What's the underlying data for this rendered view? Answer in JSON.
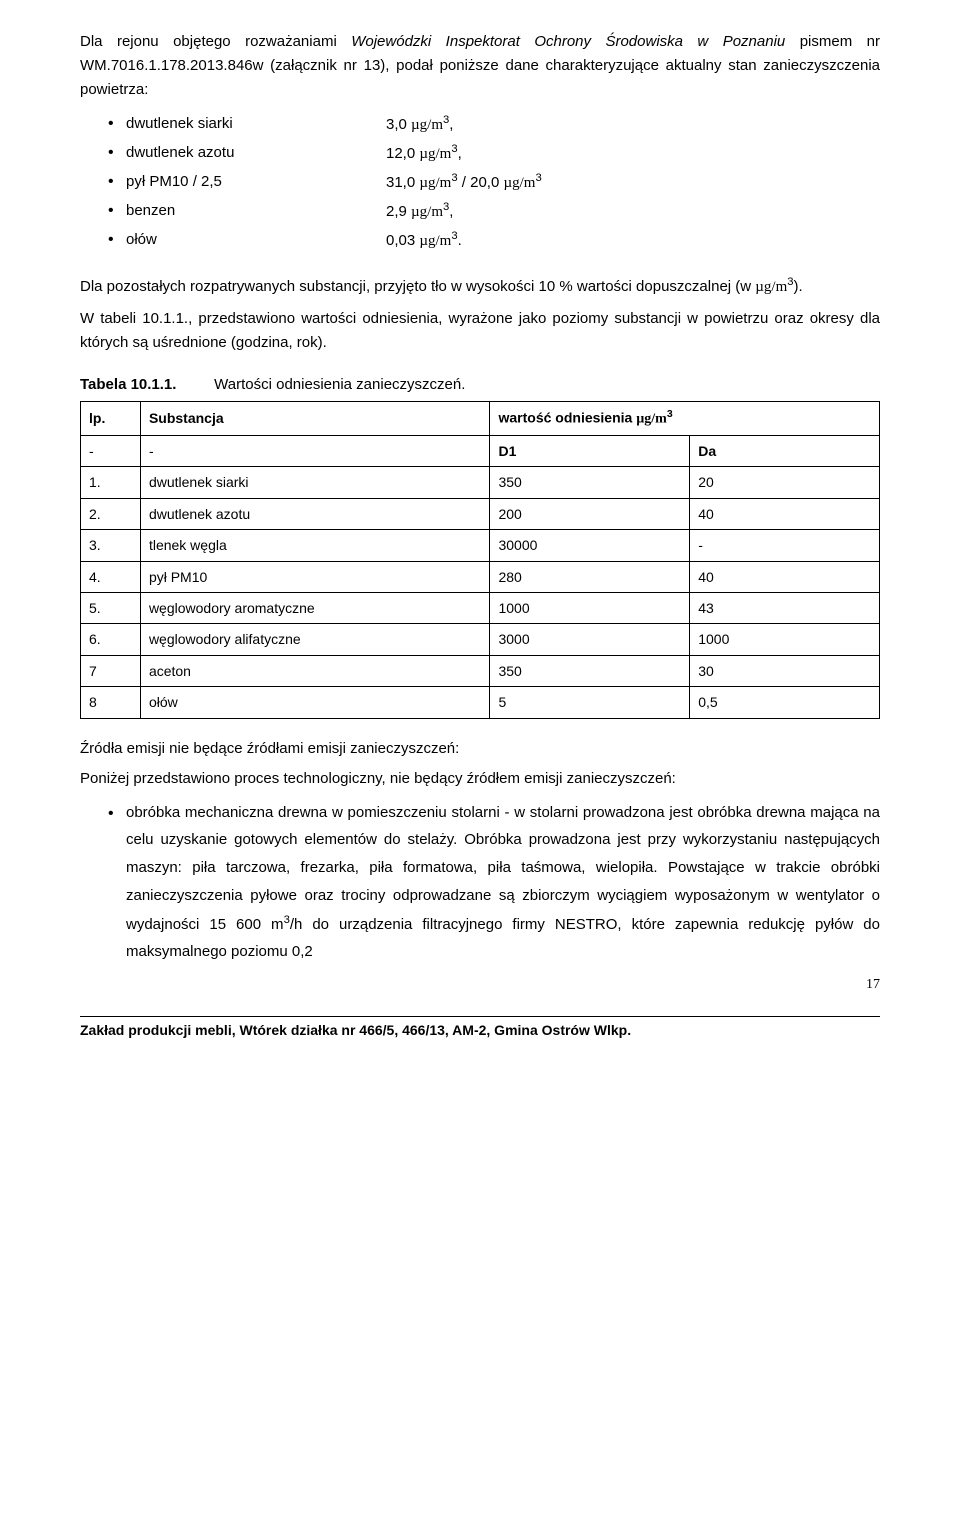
{
  "intro": {
    "p1_part1": "Dla rejonu objętego rozważaniami ",
    "p1_italic": "Wojewódzki Inspektorat Ochrony Środowiska w Poznaniu",
    "p1_part2": " pismem nr WM.7016.1.178.2013.846w (załącznik nr 13), podał poniższe dane charakteryzujące aktualny stan zanieczyszczenia powietrza:"
  },
  "pollutants": [
    {
      "label": "dwutlenek siarki",
      "value_pre": "3,0 ",
      "unit": "µg/m",
      "sup": "3",
      "suffix": ","
    },
    {
      "label": "dwutlenek azotu",
      "value_pre": "12,0 ",
      "unit": "µg/m",
      "sup": "3",
      "suffix": ","
    },
    {
      "label": "pył PM10 / 2,5",
      "value_pre": "31,0 ",
      "unit": "µg/m",
      "sup": "3",
      "suffix": " / 20,0 µg/m",
      "sup2": "3"
    },
    {
      "label": "benzen",
      "value_pre": "2,9 ",
      "unit": "µg/m",
      "sup": "3",
      "suffix": ","
    },
    {
      "label": "ołów",
      "value_pre": "0,03 ",
      "unit": "µg/m",
      "sup": "3",
      "suffix": "."
    }
  ],
  "para2_pre": "Dla pozostałych rozpatrywanych substancji, przyjęto tło w wysokości 10 % wartości dopuszczalnej (w ",
  "para2_unit": "µg/m",
  "para2_sup": "3",
  "para2_post": ").",
  "para3": "W tabeli 10.1.1., przedstawiono wartości odniesienia, wyrażone jako poziomy substancji w powietrzu oraz okresy dla których są uśrednione (godzina, rok).",
  "table_title_num": "Tabela 10.1.1.",
  "table_title_txt": "Wartości odniesienia zanieczyszczeń.",
  "table_heads": {
    "lp": "lp.",
    "sub": "Substancja",
    "wart_pre": "wartość odniesienia ",
    "wart_unit": "µg/m",
    "wart_sup": "3",
    "dash": "-",
    "d1": "D1",
    "da": "Da"
  },
  "table_rows": [
    {
      "lp": "1.",
      "sub": "dwutlenek siarki",
      "d1": "350",
      "da": "20"
    },
    {
      "lp": "2.",
      "sub": "dwutlenek azotu",
      "d1": "200",
      "da": "40"
    },
    {
      "lp": "3.",
      "sub": "tlenek węgla",
      "d1": "30000",
      "da": "-"
    },
    {
      "lp": "4.",
      "sub": "pył PM10",
      "d1": "280",
      "da": "40"
    },
    {
      "lp": "5.",
      "sub": "węglowodory aromatyczne",
      "d1": "1000",
      "da": "43"
    },
    {
      "lp": "6.",
      "sub": "węglowodory alifatyczne",
      "d1": "3000",
      "da": "1000"
    },
    {
      "lp": "7",
      "sub": "aceton",
      "d1": "350",
      "da": "30"
    },
    {
      "lp": "8",
      "sub": "ołów",
      "d1": "5",
      "da": "0,5"
    }
  ],
  "heading2": "Źródła emisji nie będące źródłami emisji zanieczyszczeń:",
  "para4": "Poniżej przedstawiono proces technologiczny, nie będący źródłem emisji zanieczyszczeń:",
  "bullet2_pre": "obróbka mechaniczna drewna w pomieszczeniu stolarni - w stolarni prowadzona jest obróbka drewna mająca na celu uzyskanie gotowych elementów do stelaży. Obróbka prowadzona jest przy wykorzystaniu następujących maszyn: piła tarczowa, frezarka, piła formatowa, piła taśmowa, wielopiła. Powstające w trakcie obróbki zanieczyszczenia pyłowe oraz trociny odprowadzane są zbiorczym wyciągiem wyposażonym w wentylator o wydajności 15 600 m",
  "bullet2_sup": "3",
  "bullet2_post": "/h do urządzenia filtracyjnego firmy NESTRO, które zapewnia redukcję pyłów do maksymalnego poziomu 0,2",
  "footer": "Zakład produkcji mebli,  Wtórek działka nr 466/5,  466/13,  AM-2, Gmina Ostrów Wlkp.",
  "page": "17"
}
